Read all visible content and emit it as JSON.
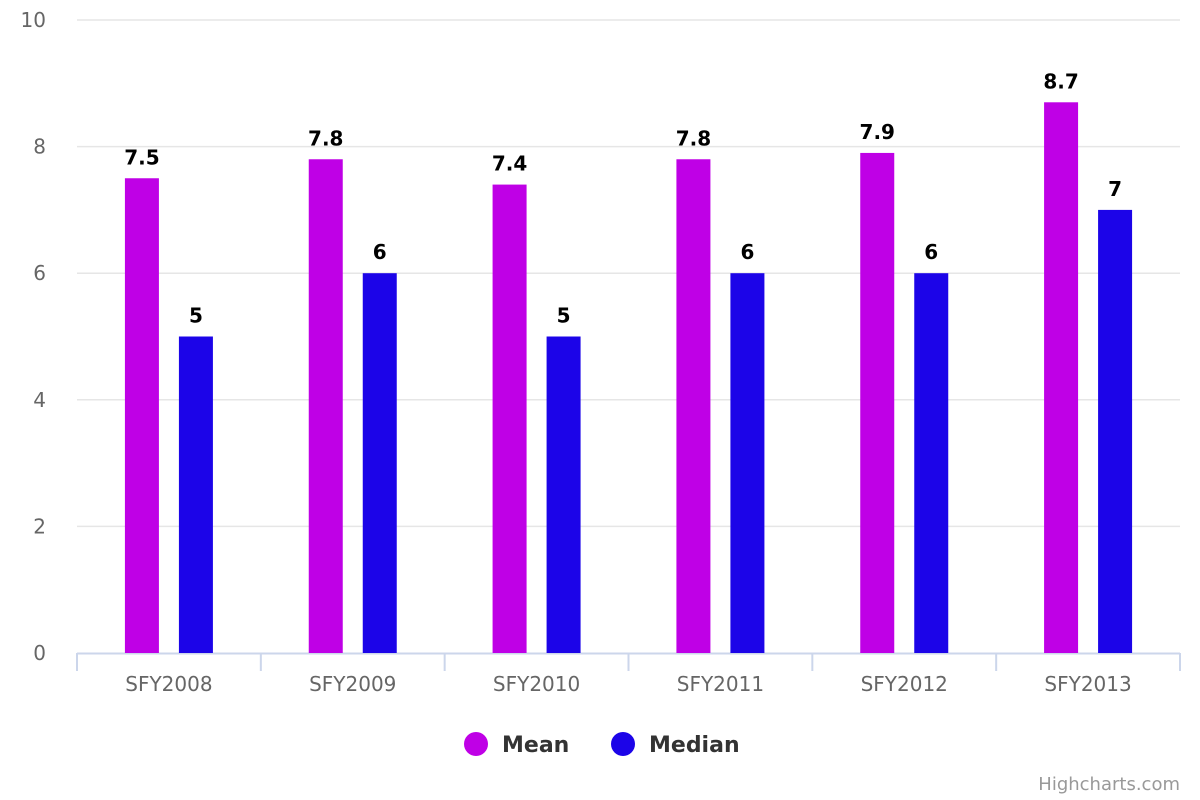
{
  "chart_data": {
    "type": "bar",
    "categories": [
      "SFY2008",
      "SFY2009",
      "SFY2010",
      "SFY2011",
      "SFY2012",
      "SFY2013"
    ],
    "series": [
      {
        "name": "Mean",
        "color": "#bf00e6",
        "values": [
          7.5,
          7.8,
          7.4,
          7.8,
          7.9,
          8.7
        ]
      },
      {
        "name": "Median",
        "color": "#1c04e8",
        "values": [
          5,
          6,
          5,
          6,
          6,
          7
        ]
      }
    ],
    "ylim": [
      0,
      10
    ],
    "yticks": [
      0,
      2,
      4,
      6,
      8,
      10
    ],
    "grid": true,
    "data_labels": true,
    "legend_position": "bottom-center"
  },
  "credits": "Highcharts.com"
}
